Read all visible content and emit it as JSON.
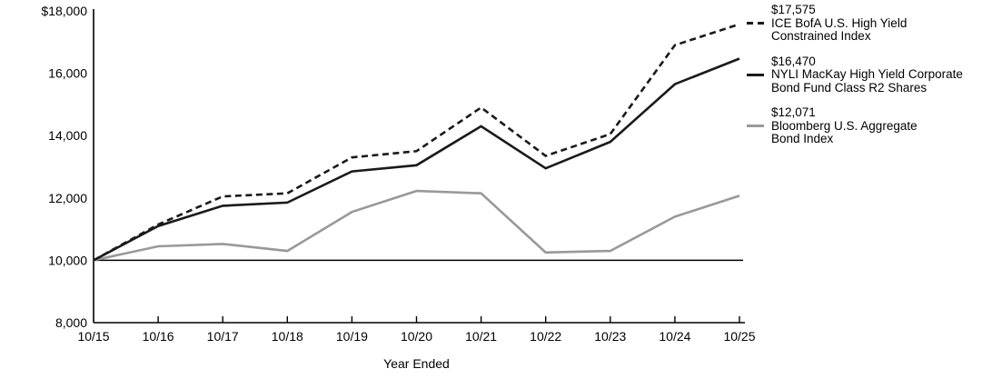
{
  "page": {
    "background": "#ffffff",
    "text_color": "#000000"
  },
  "chart_data": {
    "type": "line",
    "title": "",
    "xlabel": "Year Ended",
    "ylabel": "",
    "ylim": [
      8000,
      18000
    ],
    "grid": "off",
    "legend_position": "right",
    "baseline_value": 10000,
    "ytick_values": [
      18000,
      16000,
      14000,
      12000,
      10000,
      8000
    ],
    "ytick_labels": [
      "$18,000",
      "16,000",
      "14,000",
      "12,000",
      "10,000",
      "8,000"
    ],
    "categories": [
      "10/15",
      "10/16",
      "10/17",
      "10/18",
      "10/19",
      "10/20",
      "10/21",
      "10/22",
      "10/23",
      "10/24",
      "10/25"
    ],
    "series": [
      {
        "name": "ICE BofA U.S. High Yield Constrained Index",
        "legend_value": "$17,575",
        "legend_lines": [
          "ICE BofA U.S. High Yield",
          "Constrained Index"
        ],
        "style": "dashed",
        "color": "#1a1a1a",
        "values": [
          10000,
          11150,
          12050,
          12150,
          13300,
          13500,
          14900,
          13350,
          14050,
          16900,
          17575
        ]
      },
      {
        "name": "NYLI MacKay High Yield Corporate Bond Fund Class R2 Shares",
        "legend_value": "$16,470",
        "legend_lines": [
          "NYLI MacKay High Yield Corporate",
          "Bond Fund Class R2 Shares"
        ],
        "style": "solid",
        "color": "#1a1a1a",
        "values": [
          10000,
          11100,
          11750,
          11850,
          12850,
          13050,
          14300,
          12950,
          13800,
          15650,
          16470
        ]
      },
      {
        "name": "Bloomberg U.S. Aggregate Bond Index",
        "legend_value": "$12,071",
        "legend_lines": [
          "Bloomberg U.S. Aggregate",
          "Bond Index"
        ],
        "style": "solid",
        "color": "#999999",
        "values": [
          10000,
          10450,
          10525,
          10300,
          11550,
          12225,
          12150,
          10250,
          10300,
          11400,
          12071
        ]
      }
    ]
  }
}
